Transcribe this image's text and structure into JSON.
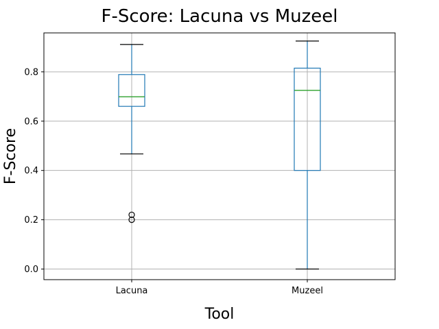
{
  "chart_data": {
    "type": "box",
    "title": "F-Score: Lacuna vs Muzeel",
    "xlabel": "Tool",
    "ylabel": "F-Score",
    "ylim": [
      -0.043,
      0.958
    ],
    "yticks": [
      0.0,
      0.2,
      0.4,
      0.6,
      0.8
    ],
    "ytick_labels": [
      "0.0",
      "0.2",
      "0.4",
      "0.6",
      "0.8"
    ],
    "grid": true,
    "categories": [
      "Lacuna",
      "Muzeel"
    ],
    "boxes": [
      {
        "name": "Lacuna",
        "whisker_low": 0.467,
        "q1": 0.66,
        "median": 0.699,
        "q3": 0.789,
        "whisker_high": 0.911,
        "fliers": [
          0.2,
          0.22
        ]
      },
      {
        "name": "Muzeel",
        "whisker_low": 0.0,
        "q1": 0.4,
        "median": 0.725,
        "q3": 0.815,
        "whisker_high": 0.925,
        "fliers": []
      }
    ],
    "colors": {
      "box": "#1f77b4",
      "median": "#2ca02c",
      "grid": "#b0b0b0"
    }
  }
}
